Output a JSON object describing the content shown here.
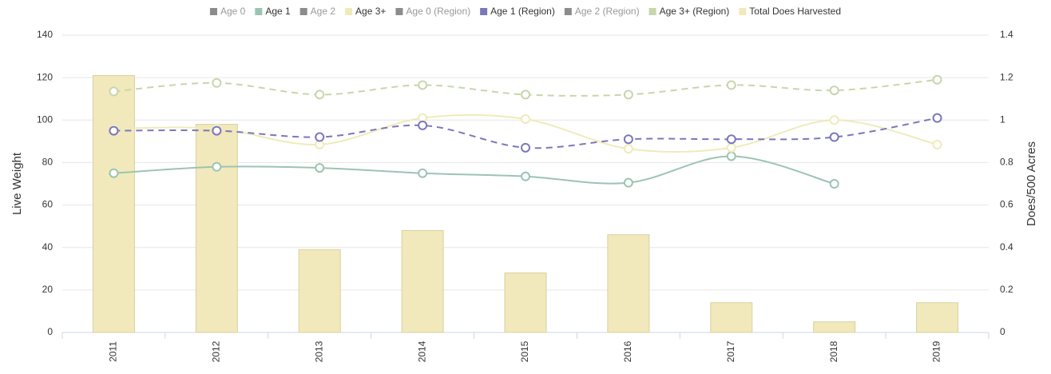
{
  "chart_data": {
    "type": "combo",
    "categories": [
      "2011",
      "2012",
      "2013",
      "2014",
      "2015",
      "2016",
      "2017",
      "2018",
      "2019"
    ],
    "ylabel": "Live Weight",
    "y2label": "Does/500 Acres",
    "ylim": [
      0,
      140
    ],
    "yticks": [
      0,
      20,
      40,
      60,
      80,
      100,
      120,
      140
    ],
    "y2lim": [
      0,
      1.4
    ],
    "y2ticks": [
      0,
      0.2,
      0.4,
      0.6,
      0.8,
      1,
      1.2,
      1.4
    ],
    "grid": true,
    "legend": "top",
    "series": [
      {
        "name": "Age 0",
        "color": "#8c8c8c",
        "visible": false,
        "kind": "line",
        "values": [
          null,
          null,
          null,
          null,
          null,
          null,
          null,
          null,
          null
        ]
      },
      {
        "name": "Age 1",
        "color": "#9cc4b2",
        "visible": true,
        "kind": "line",
        "values": [
          75,
          78,
          77.5,
          75,
          73.5,
          70.5,
          83,
          70,
          null
        ]
      },
      {
        "name": "Age 2",
        "color": "#8c8c8c",
        "visible": false,
        "kind": "line",
        "values": [
          null,
          null,
          null,
          null,
          null,
          null,
          null,
          null,
          null
        ]
      },
      {
        "name": "Age 3+",
        "color": "#efebb9",
        "visible": true,
        "kind": "line",
        "values": [
          96,
          96,
          88.5,
          101,
          100.5,
          86.5,
          87,
          100,
          88.5
        ]
      },
      {
        "name": "Age 0 (Region)",
        "color": "#8c8c8c",
        "visible": false,
        "kind": "dashed",
        "values": [
          null,
          null,
          null,
          null,
          null,
          null,
          null,
          null,
          null
        ]
      },
      {
        "name": "Age 1 (Region)",
        "color": "#7c77b9",
        "visible": true,
        "kind": "dashed",
        "values": [
          95,
          95,
          92,
          97.5,
          87,
          91,
          91,
          92,
          101
        ]
      },
      {
        "name": "Age 2 (Region)",
        "color": "#8c8c8c",
        "visible": false,
        "kind": "dashed",
        "values": [
          null,
          null,
          null,
          null,
          null,
          null,
          null,
          null,
          null
        ]
      },
      {
        "name": "Age 3+ (Region)",
        "color": "#c7d6ab",
        "visible": true,
        "kind": "dashed",
        "values": [
          113.5,
          117.5,
          112,
          116.5,
          112,
          112,
          116.5,
          114,
          119
        ]
      },
      {
        "name": "Total Does Harvested",
        "color": "#f1e9bb",
        "visible": true,
        "kind": "bar",
        "values": [
          121,
          98,
          39,
          48,
          28,
          46,
          14,
          5,
          14
        ]
      }
    ]
  }
}
